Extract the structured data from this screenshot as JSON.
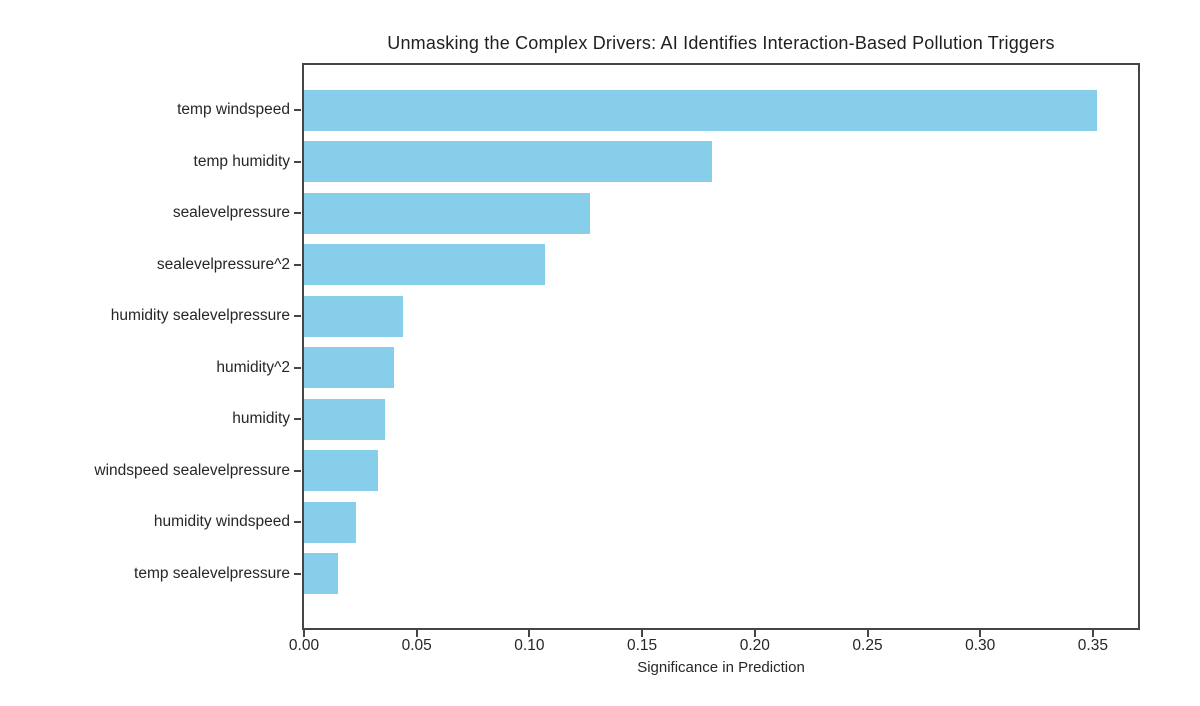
{
  "chart": {
    "title": "Unmasking the Complex Drivers: AI Identifies Interaction-Based Pollution Triggers",
    "xlabel": "Significance in Prediction"
  },
  "chart_data": {
    "type": "bar",
    "orientation": "horizontal",
    "title": "Unmasking the Complex Drivers: AI Identifies Interaction-Based Pollution Triggers",
    "xlabel": "Significance in Prediction",
    "ylabel": "",
    "categories": [
      "temp windspeed",
      "temp humidity",
      "sealevelpressure",
      "sealevelpressure^2",
      "humidity sealevelpressure",
      "humidity^2",
      "humidity",
      "windspeed sealevelpressure",
      "humidity windspeed",
      "temp sealevelpressure"
    ],
    "values": [
      0.352,
      0.181,
      0.127,
      0.107,
      0.044,
      0.04,
      0.036,
      0.033,
      0.023,
      0.015
    ],
    "xlim": [
      0,
      0.37
    ],
    "xtick_values": [
      0.0,
      0.05,
      0.1,
      0.15,
      0.2,
      0.25,
      0.3,
      0.35
    ],
    "xtick_labels": [
      "0.00",
      "0.05",
      "0.10",
      "0.15",
      "0.20",
      "0.25",
      "0.30",
      "0.35"
    ],
    "bar_color": "#87CEEB",
    "spine_color": "#454545",
    "text_color": "#262626",
    "grid": false,
    "legend": null
  }
}
